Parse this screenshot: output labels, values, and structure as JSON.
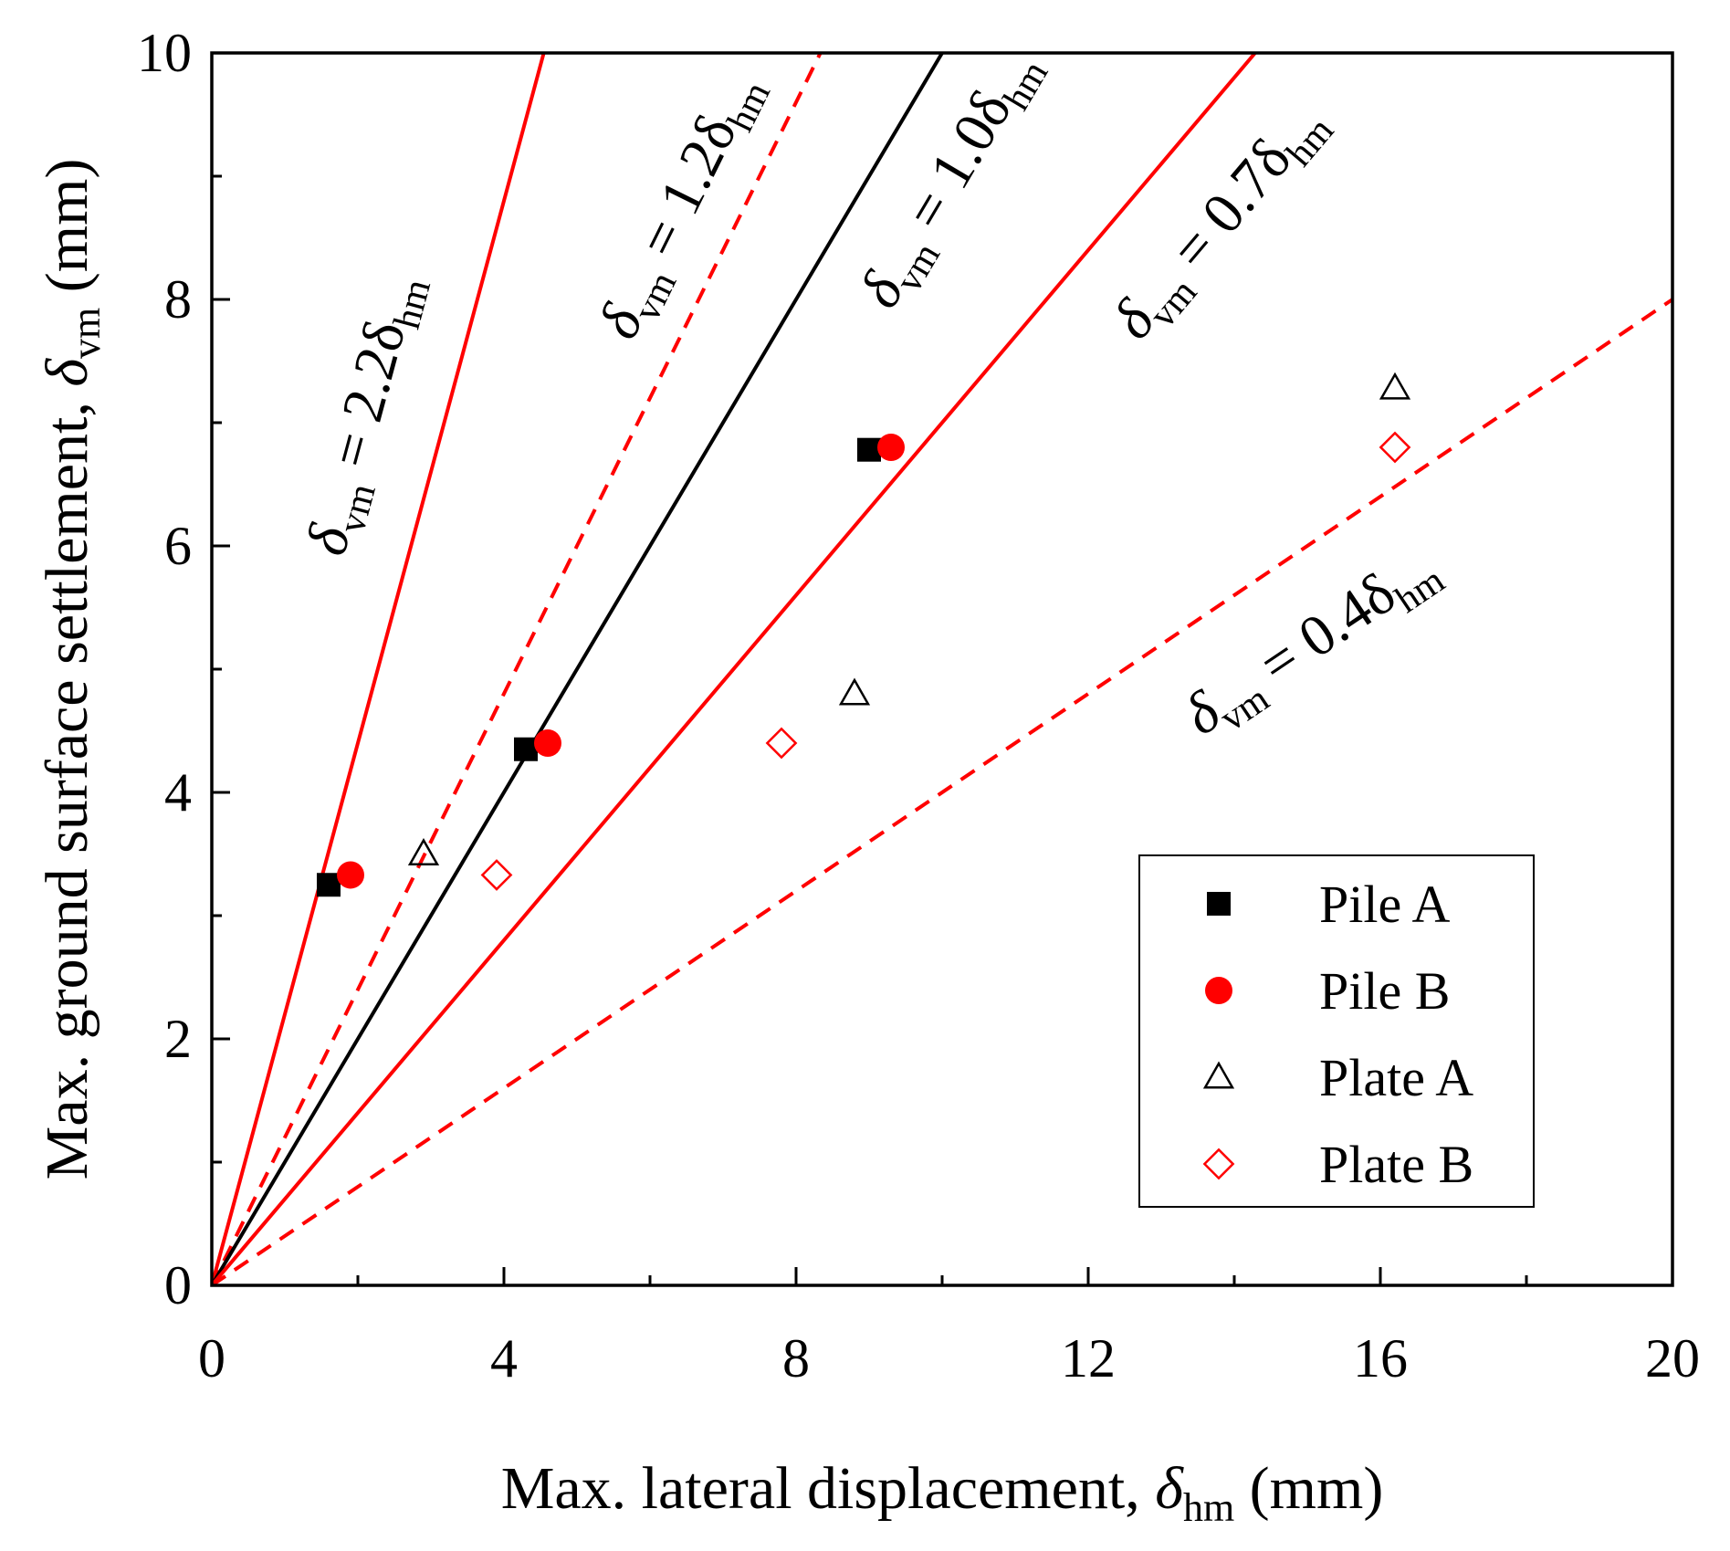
{
  "chart_data": {
    "type": "scatter",
    "xlabel": "Max. lateral displacement, δhm (mm)",
    "ylabel": "Max. ground surface settlement, δvm (mm)",
    "xlim": [
      0,
      20
    ],
    "ylim": [
      0,
      10
    ],
    "xticks": [
      "0",
      "4",
      "8",
      "12",
      "16",
      "20"
    ],
    "yticks": [
      "0",
      "2",
      "4",
      "6",
      "8",
      "10"
    ],
    "grid": false,
    "legend_position": "bottom-right",
    "colors": {
      "black": "#000000",
      "red": "#ff0000"
    },
    "series": [
      {
        "name": "Pile A",
        "marker": "filled-square",
        "color": "#000000",
        "points": [
          [
            1.6,
            3.25
          ],
          [
            4.3,
            4.35
          ],
          [
            9.0,
            6.78
          ]
        ]
      },
      {
        "name": "Pile B",
        "marker": "filled-circle",
        "color": "#ff0000",
        "points": [
          [
            1.9,
            3.33
          ],
          [
            4.6,
            4.4
          ],
          [
            9.3,
            6.8
          ]
        ]
      },
      {
        "name": "Plate A",
        "marker": "open-triangle",
        "color": "#000000",
        "points": [
          [
            2.9,
            3.5
          ],
          [
            8.8,
            4.8
          ],
          [
            16.2,
            7.28
          ]
        ]
      },
      {
        "name": "Plate B",
        "marker": "open-diamond",
        "color": "#ff0000",
        "points": [
          [
            3.9,
            3.33
          ],
          [
            7.8,
            4.4
          ],
          [
            16.2,
            6.8
          ]
        ]
      }
    ],
    "reference_lines": [
      {
        "label_main": "δvm = 2.2δ",
        "label_sub": "hm",
        "slope": 2.2,
        "color": "#ff0000",
        "dash": "solid"
      },
      {
        "label_main": "δvm = 1.2δ",
        "label_sub": "hm",
        "slope": 1.2,
        "color": "#ff0000",
        "dash": "dashed"
      },
      {
        "label_main": "δvm = 1.0δ",
        "label_sub": "hm",
        "slope": 1.0,
        "color": "#000000",
        "dash": "solid"
      },
      {
        "label_main": "δvm = 0.7δ",
        "label_sub": "hm",
        "slope": 0.7,
        "color": "#ff0000",
        "dash": "solid"
      },
      {
        "label_main": "δvm = 0.4δ",
        "label_sub": "hm",
        "slope": 0.4,
        "color": "#ff0000",
        "dash": "dashed"
      }
    ]
  },
  "axis_text": {
    "x_title_main": "Max. lateral displacement, ",
    "x_title_symbol": "δ",
    "x_title_sub": "hm",
    "x_title_unit": " (mm)",
    "y_title_main": "Max. ground surface settlement, ",
    "y_title_symbol": "δ",
    "y_title_sub": "vm",
    "y_title_unit": " (mm)"
  }
}
